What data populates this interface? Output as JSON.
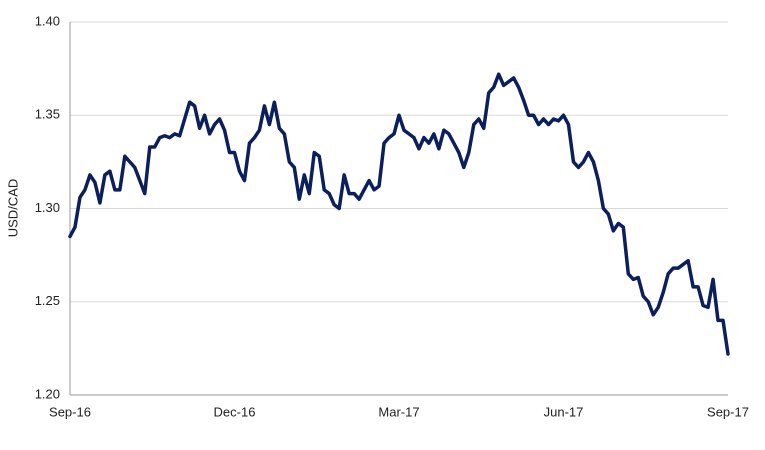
{
  "chart_data": {
    "type": "line",
    "y_label": "USD/CAD",
    "categories": [
      "Sep-16",
      null,
      null,
      null,
      null,
      null,
      null,
      null,
      null,
      null,
      null,
      null,
      null,
      null,
      null,
      null,
      null,
      null,
      null,
      null,
      null,
      null,
      null,
      null,
      null,
      null,
      null,
      null,
      null,
      null,
      null,
      null,
      null,
      "Dec-16",
      null,
      null,
      null,
      null,
      null,
      null,
      null,
      null,
      null,
      null,
      null,
      null,
      null,
      null,
      null,
      null,
      null,
      null,
      null,
      null,
      null,
      null,
      null,
      null,
      null,
      null,
      null,
      null,
      null,
      null,
      null,
      null,
      "Mar-17",
      null,
      null,
      null,
      null,
      null,
      null,
      null,
      null,
      null,
      null,
      null,
      null,
      null,
      null,
      null,
      null,
      null,
      null,
      null,
      null,
      null,
      null,
      null,
      null,
      null,
      null,
      null,
      null,
      null,
      null,
      null,
      null,
      "Jun-17",
      null,
      null,
      null,
      null,
      null,
      null,
      null,
      null,
      null,
      null,
      null,
      null,
      null,
      null,
      null,
      null,
      null,
      null,
      null,
      null,
      null,
      null,
      null,
      null,
      null,
      null,
      null,
      null,
      null,
      null,
      null,
      null,
      "Sep-17"
    ],
    "values": [
      1.285,
      1.29,
      1.306,
      1.31,
      1.318,
      1.314,
      1.303,
      1.318,
      1.32,
      1.31,
      1.31,
      1.328,
      1.325,
      1.322,
      1.315,
      1.308,
      1.333,
      1.333,
      1.338,
      1.339,
      1.338,
      1.34,
      1.339,
      1.348,
      1.357,
      1.355,
      1.343,
      1.35,
      1.34,
      1.345,
      1.348,
      1.342,
      1.33,
      1.33,
      1.32,
      1.315,
      1.335,
      1.338,
      1.342,
      1.355,
      1.345,
      1.357,
      1.343,
      1.34,
      1.325,
      1.322,
      1.305,
      1.318,
      1.308,
      1.33,
      1.328,
      1.31,
      1.308,
      1.302,
      1.3,
      1.318,
      1.308,
      1.308,
      1.305,
      1.31,
      1.315,
      1.31,
      1.312,
      1.335,
      1.338,
      1.34,
      1.35,
      1.342,
      1.34,
      1.338,
      1.332,
      1.338,
      1.335,
      1.34,
      1.332,
      1.342,
      1.34,
      1.335,
      1.33,
      1.322,
      1.33,
      1.345,
      1.348,
      1.343,
      1.362,
      1.365,
      1.372,
      1.366,
      1.368,
      1.37,
      1.365,
      1.358,
      1.35,
      1.35,
      1.345,
      1.348,
      1.345,
      1.348,
      1.347,
      1.35,
      1.345,
      1.325,
      1.322,
      1.325,
      1.33,
      1.325,
      1.315,
      1.3,
      1.297,
      1.288,
      1.292,
      1.29,
      1.265,
      1.262,
      1.263,
      1.253,
      1.25,
      1.243,
      1.247,
      1.255,
      1.265,
      1.268,
      1.268,
      1.27,
      1.272,
      1.258,
      1.258,
      1.248,
      1.247,
      1.262,
      1.24,
      1.24,
      1.222
    ],
    "color": "#0b1f5c",
    "ylim": [
      1.2,
      1.4
    ],
    "yticks": [
      {
        "value": 1.2,
        "label": "1.20"
      },
      1.25,
      {
        "value": 1.3,
        "label": "1.30"
      },
      1.35,
      {
        "value": 1.4,
        "label": "1.40"
      }
    ],
    "grid": true
  }
}
